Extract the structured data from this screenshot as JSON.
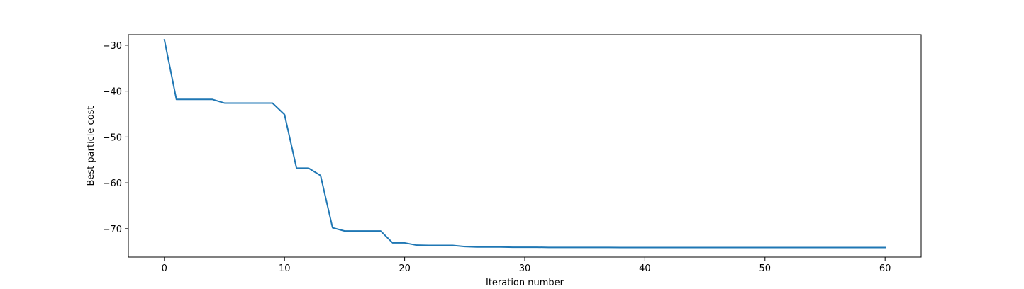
{
  "chart_data": {
    "type": "line",
    "title": "",
    "xlabel": "Iteration number",
    "ylabel": "Best particle cost",
    "xlim": [
      -3,
      63
    ],
    "ylim": [
      -76.2,
      -27.7
    ],
    "xticks": [
      0,
      10,
      20,
      30,
      40,
      50,
      60
    ],
    "xtick_labels": [
      "0",
      "10",
      "20",
      "30",
      "40",
      "50",
      "60"
    ],
    "yticks": [
      -30,
      -40,
      -50,
      -60,
      -70
    ],
    "ytick_labels": [
      "−30",
      "−40",
      "−50",
      "−60",
      "−70"
    ],
    "grid": false,
    "legend": false,
    "series": [
      {
        "color": "#1f77b4",
        "x": [
          0,
          1,
          2,
          3,
          4,
          5,
          6,
          7,
          8,
          9,
          10,
          11,
          12,
          13,
          14,
          15,
          16,
          17,
          18,
          19,
          20,
          21,
          22,
          23,
          24,
          25,
          26,
          27,
          28,
          29,
          30,
          31,
          32,
          33,
          34,
          35,
          36,
          37,
          38,
          39,
          40,
          41,
          42,
          43,
          44,
          45,
          46,
          47,
          48,
          49,
          50,
          51,
          52,
          53,
          54,
          55,
          56,
          57,
          58,
          59,
          60
        ],
        "y": [
          -28.8,
          -41.8,
          -41.8,
          -41.8,
          -41.8,
          -42.6,
          -42.6,
          -42.6,
          -42.6,
          -42.6,
          -45.1,
          -56.8,
          -56.8,
          -58.4,
          -69.8,
          -70.5,
          -70.5,
          -70.5,
          -70.5,
          -73.1,
          -73.1,
          -73.6,
          -73.65,
          -73.65,
          -73.65,
          -73.9,
          -74.0,
          -74.0,
          -74.0,
          -74.05,
          -74.05,
          -74.05,
          -74.1,
          -74.1,
          -74.1,
          -74.1,
          -74.1,
          -74.1,
          -74.12,
          -74.12,
          -74.12,
          -74.12,
          -74.12,
          -74.12,
          -74.12,
          -74.12,
          -74.12,
          -74.12,
          -74.12,
          -74.12,
          -74.12,
          -74.12,
          -74.12,
          -74.12,
          -74.12,
          -74.12,
          -74.12,
          -74.12,
          -74.12,
          -74.12,
          -74.12
        ]
      }
    ]
  }
}
